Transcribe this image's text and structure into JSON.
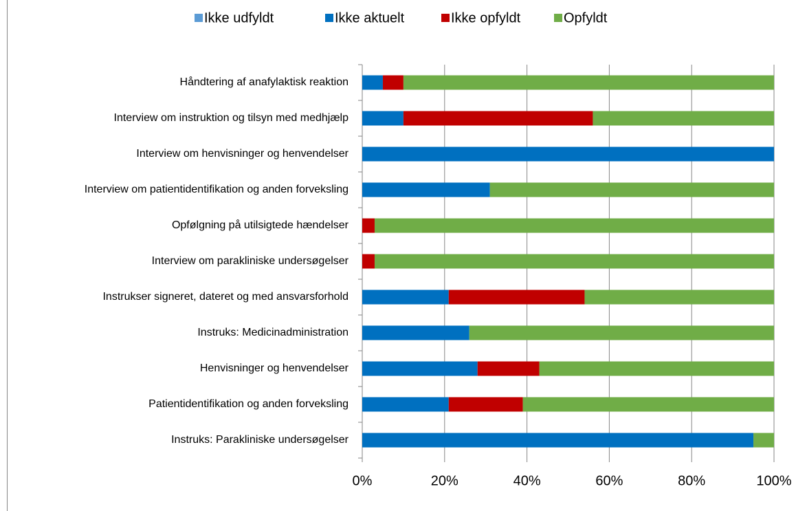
{
  "chart_data": {
    "type": "stacked_barh",
    "categories": [
      "Håndtering af anafylaktisk reaktion",
      "Interview om instruktion og tilsyn med medhjælp",
      "Interview om henvisninger og henvendelser",
      "Interview om patientidentifikation og anden forveksling",
      "Opfølgning på utilsigtede hændelser",
      "Interview om parakliniske undersøgelser",
      "Instrukser signeret, dateret og med ansvarsforhold",
      "Instruks: Medicinadministration",
      "Henvisninger og henvendelser",
      "Patientidentifikation og anden forveksling",
      "Instruks: Parakliniske undersøgelser"
    ],
    "series": [
      {
        "name": "Ikke udfyldt",
        "color": "#5b9bd5",
        "values": [
          0,
          0,
          0,
          0,
          0,
          0,
          0,
          0,
          0,
          0,
          0
        ]
      },
      {
        "name": "Ikke aktuelt",
        "color": "#0070c0",
        "values": [
          5,
          10,
          100,
          31,
          0,
          0,
          21,
          26,
          28,
          21,
          95
        ]
      },
      {
        "name": "Ikke opfyldt",
        "color": "#c00000",
        "values": [
          5,
          46,
          0,
          0,
          3,
          3,
          33,
          0,
          15,
          18,
          0
        ]
      },
      {
        "name": "Opfyldt",
        "color": "#70ad47",
        "values": [
          90,
          44,
          0,
          69,
          97,
          97,
          46,
          74,
          57,
          61,
          5
        ]
      }
    ],
    "xlim": [
      0,
      100
    ],
    "xticks": [
      {
        "value": 0,
        "label": "0%"
      },
      {
        "value": 20,
        "label": "20%"
      },
      {
        "value": 40,
        "label": "40%"
      },
      {
        "value": 60,
        "label": "60%"
      },
      {
        "value": 80,
        "label": "80%"
      },
      {
        "value": 100,
        "label": "100%"
      }
    ],
    "grid": true,
    "legend": "top"
  }
}
